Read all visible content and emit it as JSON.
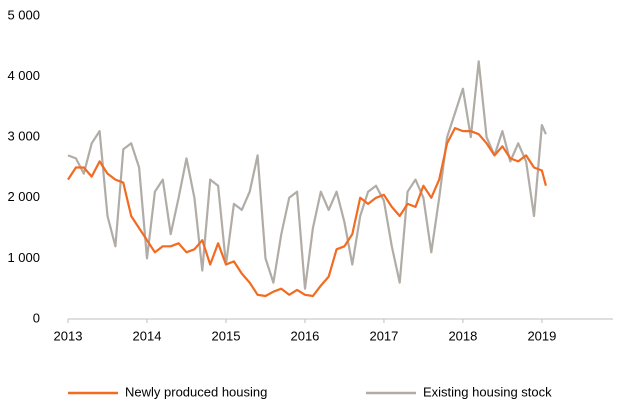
{
  "chart_data": {
    "type": "line",
    "x": [
      2013.0,
      2013.1,
      2013.2,
      2013.3,
      2013.4,
      2013.5,
      2013.6,
      2013.7,
      2013.8,
      2013.9,
      2014.0,
      2014.1,
      2014.2,
      2014.3,
      2014.4,
      2014.5,
      2014.6,
      2014.7,
      2014.8,
      2014.9,
      2015.0,
      2015.1,
      2015.2,
      2015.3,
      2015.4,
      2015.5,
      2015.6,
      2015.7,
      2015.8,
      2015.9,
      2016.0,
      2016.1,
      2016.2,
      2016.3,
      2016.4,
      2016.5,
      2016.6,
      2016.7,
      2016.8,
      2016.9,
      2017.0,
      2017.1,
      2017.2,
      2017.3,
      2017.4,
      2017.5,
      2017.6,
      2017.7,
      2017.8,
      2017.9,
      2018.0,
      2018.1,
      2018.2,
      2018.3,
      2018.4,
      2018.5,
      2018.6,
      2018.7,
      2018.8,
      2018.9,
      2019.0,
      2019.05
    ],
    "series": [
      {
        "name": "Newly produced housing",
        "color": "#f26b21",
        "values": [
          2300,
          2500,
          2500,
          2350,
          2600,
          2400,
          2300,
          2250,
          1700,
          1500,
          1300,
          1100,
          1200,
          1200,
          1250,
          1100,
          1150,
          1300,
          900,
          1250,
          900,
          950,
          750,
          600,
          400,
          380,
          450,
          500,
          400,
          480,
          400,
          380,
          550,
          700,
          1150,
          1200,
          1400,
          2000,
          1900,
          2000,
          2050,
          1850,
          1700,
          1900,
          1850,
          2200,
          2000,
          2300,
          2900,
          3150,
          3100,
          3100,
          3050,
          2900,
          2700,
          2850,
          2650,
          2600,
          2700,
          2500,
          2450,
          2200
        ]
      },
      {
        "name": "Existing housing stock",
        "color": "#b1aca6",
        "values": [
          2700,
          2650,
          2400,
          2900,
          3100,
          1700,
          1200,
          2800,
          2900,
          2500,
          1000,
          2100,
          2300,
          1400,
          2000,
          2650,
          2000,
          800,
          2300,
          2200,
          900,
          1900,
          1800,
          2100,
          2700,
          1000,
          600,
          1400,
          2000,
          2100,
          500,
          1500,
          2100,
          1800,
          2100,
          1600,
          900,
          1700,
          2100,
          2200,
          1950,
          1200,
          600,
          2100,
          2300,
          2000,
          1100,
          2000,
          3000,
          3400,
          3800,
          3000,
          4250,
          3000,
          2700,
          3100,
          2600,
          2900,
          2600,
          1700,
          3200,
          3050
        ]
      }
    ],
    "xlim": [
      2013,
      2019.9
    ],
    "xticks": [
      2013,
      2014,
      2015,
      2016,
      2017,
      2018,
      2019
    ],
    "ylim": [
      0,
      5000
    ],
    "yticks": [
      0,
      {
        "value": 1000,
        "label": "1 000"
      },
      {
        "value": 2000,
        "label": "2 000"
      },
      {
        "value": 3000,
        "label": "3 000"
      },
      {
        "value": 4000,
        "label": "4 000"
      },
      {
        "value": 5000,
        "label": "5 000"
      }
    ],
    "legend": "bottom"
  }
}
